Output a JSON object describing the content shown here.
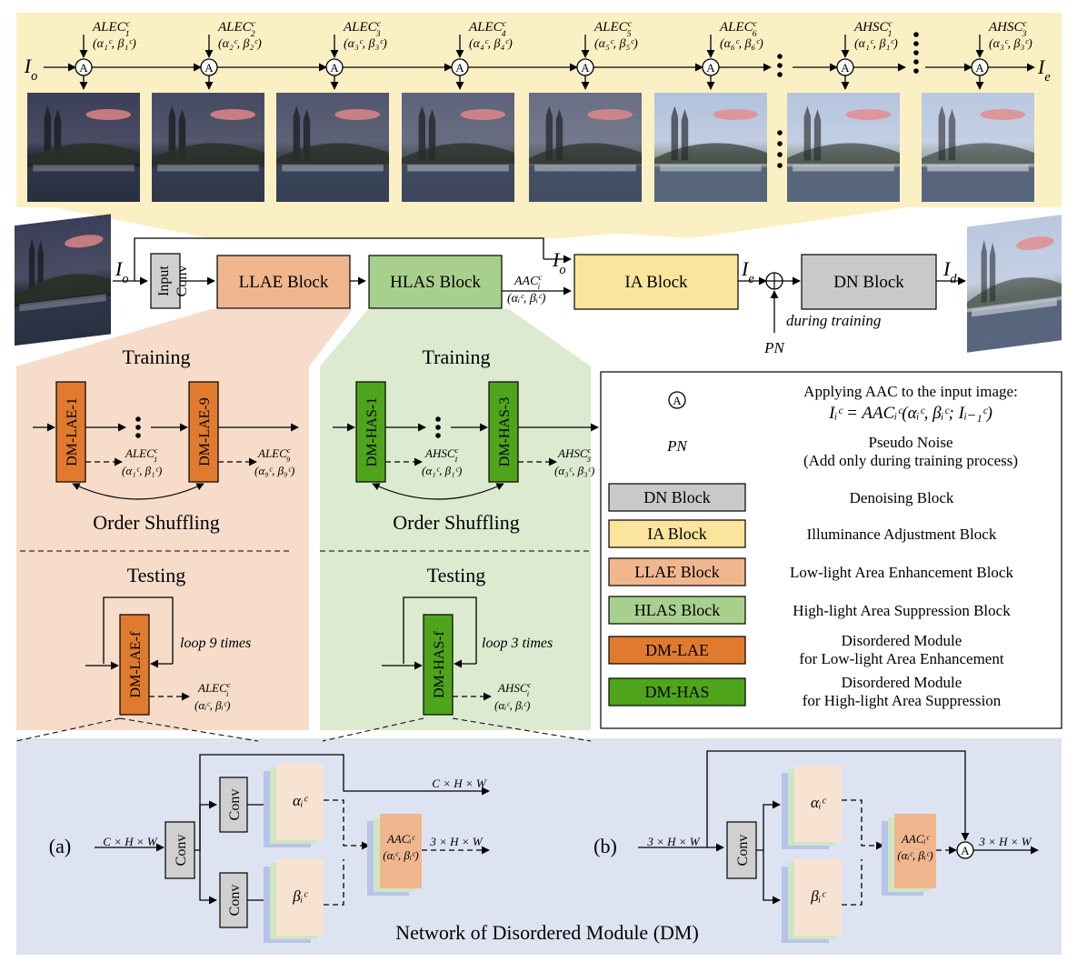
{
  "colors": {
    "top_band": "#fbf0c4",
    "llae_panel": "#f6dcc9",
    "hlas_panel": "#dcead0",
    "bottom_panel": "#dde3f0",
    "llae_block": "#f0b68d",
    "hlas_block": "#a8d08d",
    "ia_block": "#fbe59c",
    "dn_block": "#c9c9c9",
    "dm_lae": "#e07a2e",
    "dm_has": "#4ea51c",
    "conv": "#d0d0d0"
  },
  "top_stage": {
    "input_label": "I",
    "input_sub": "o",
    "output_label": "I",
    "output_sub": "e",
    "stages": [
      {
        "name": "ALEC",
        "sub": "1",
        "sup": "c",
        "params": "(α₁ᶜ, β₁ᶜ)"
      },
      {
        "name": "ALEC",
        "sub": "2",
        "sup": "c",
        "params": "(α₂ᶜ, β₂ᶜ)"
      },
      {
        "name": "ALEC",
        "sub": "3",
        "sup": "c",
        "params": "(α₃ᶜ, β₃ᶜ)"
      },
      {
        "name": "ALEC",
        "sub": "4",
        "sup": "c",
        "params": "(α₄ᶜ, β₄ᶜ)"
      },
      {
        "name": "ALEC",
        "sub": "5",
        "sup": "c",
        "params": "(α₅ᶜ, β₅ᶜ)"
      },
      {
        "name": "ALEC",
        "sub": "6",
        "sup": "c",
        "params": "(α₆ᶜ, β₆ᶜ)"
      },
      {
        "name": "AHSC",
        "sub": "1",
        "sup": "c",
        "params": "(α₁ᶜ, β₁ᶜ)"
      },
      {
        "name": "AHSC",
        "sub": "3",
        "sup": "c",
        "params": "(α₃ᶜ, β₃ᶜ)"
      }
    ]
  },
  "pipeline": {
    "input_label": "I",
    "input_sub": "o",
    "input_conv_line1": "Input",
    "input_conv_line2": "Conv",
    "llae": "LLAE Block",
    "hlas": "HLAS Block",
    "aac_label": "AAC",
    "aac_sub": "i",
    "aac_sup": "c",
    "aac_params": "(αᵢᶜ, βᵢᶜ)",
    "io_label": "I",
    "io_sub": "o",
    "ia": "IA Block",
    "ie_label": "I",
    "ie_sub": "e",
    "dn": "DN Block",
    "id_label": "I",
    "id_sub": "d",
    "during_training": "during training",
    "pn": "PN"
  },
  "llae_panel": {
    "training": "Training",
    "dm1": "DM-LAE-1",
    "dm9": "DM-LAE-9",
    "out1_name": "ALEC",
    "out1_sub": "1",
    "out1_params": "(α₁ᶜ, β₁ᶜ)",
    "out9_name": "ALEC",
    "out9_sub": "9",
    "out9_params": "(α₉ᶜ, β₉ᶜ)",
    "order_shuffling": "Order Shuffling",
    "testing": "Testing",
    "dmf": "DM-LAE-f",
    "loop": "loop 9 times",
    "outf_name": "ALEC",
    "outf_sub": "i",
    "outf_params": "(αᵢᶜ, βᵢᶜ)"
  },
  "hlas_panel": {
    "training": "Training",
    "dm1": "DM-HAS-1",
    "dm3": "DM-HAS-3",
    "out1_name": "AHSC",
    "out1_sub": "1",
    "out1_params": "(α₁ᶜ, β₁ᶜ)",
    "out3_name": "AHSC",
    "out3_sub": "3",
    "out3_params": "(α₃ᶜ, β₃ᶜ)",
    "order_shuffling": "Order Shuffling",
    "testing": "Testing",
    "dmf": "DM-HAS-f",
    "loop": "loop 3 times",
    "outf_name": "AHSC",
    "outf_sub": "i",
    "outf_params": "(αᵢᶜ, βᵢᶜ)"
  },
  "legend": {
    "aac_desc": "Applying AAC to the input image:",
    "aac_formula": "Iᵢᶜ = AACᵢᶜ(αᵢᶜ, βᵢᶜ; Iᵢ₋₁ᶜ)",
    "pn": "PN",
    "pn_desc1": "Pseudo Noise",
    "pn_desc2": "(Add only during training process)",
    "items": [
      {
        "label": "DN Block",
        "desc1": "Denoising Block",
        "desc2": ""
      },
      {
        "label": "IA Block",
        "desc1": "Illuminance Adjustment Block",
        "desc2": ""
      },
      {
        "label": "LLAE Block",
        "desc1": "Low-light  Area Enhancement Block",
        "desc2": ""
      },
      {
        "label": "HLAS Block",
        "desc1": "High-light  Area  Suppression  Block",
        "desc2": ""
      },
      {
        "label": "DM-LAE",
        "desc1": "Disordered Module",
        "desc2": "for Low-light Area Enhancement"
      },
      {
        "label": "DM-HAS",
        "desc1": "Disordered Module",
        "desc2": "for High-light Area Suppression"
      }
    ]
  },
  "dm_network": {
    "a_label": "(a)",
    "b_label": "(b)",
    "conv": "Conv",
    "a_in": "C × H × W",
    "a_skip_out": "C × H × W",
    "a_out": "3 × H × W",
    "b_in": "3 × H × W",
    "b_out": "3 × H × W",
    "alpha": "αᵢᶜ",
    "beta": "βᵢᶜ",
    "aac1": "AACᵢᶜ",
    "aac2": "(αᵢᶜ, βᵢᶜ)",
    "title": "Network of  Disordered Module (DM)"
  }
}
